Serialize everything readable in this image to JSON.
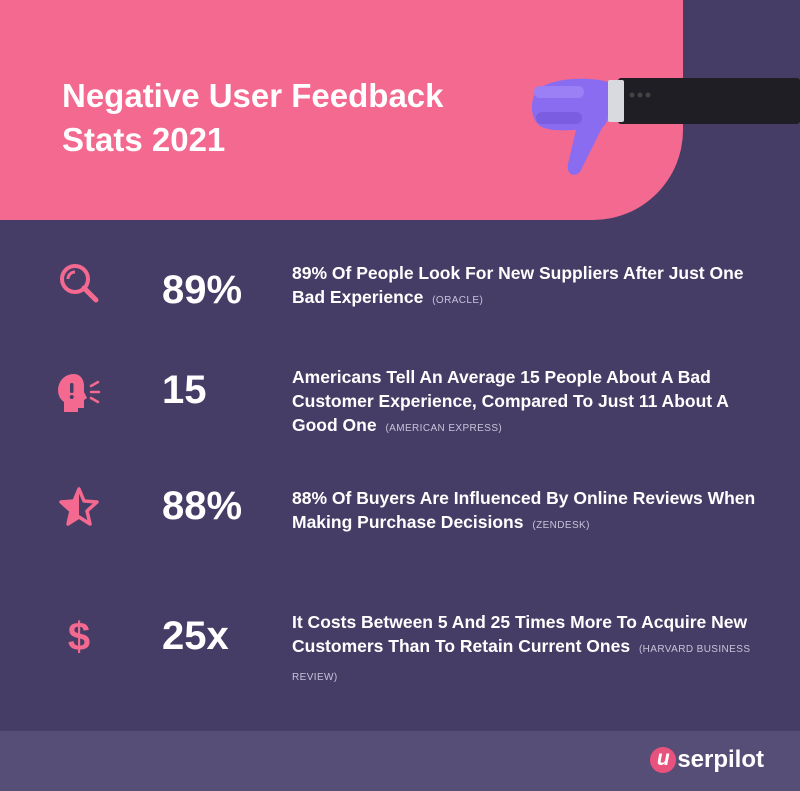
{
  "header": {
    "title": "Negative User Feedback Stats 2021"
  },
  "colors": {
    "accent": "#f4698f",
    "background": "#463d66",
    "footer": "#574e78",
    "icon": "#f4698f"
  },
  "stats": [
    {
      "icon": "magnifier-icon",
      "value": "89%",
      "text": "89% Of People Look For New Suppliers After Just One Bad Experience",
      "source": "(ORACLE)"
    },
    {
      "icon": "shouting-head-icon",
      "value": "15",
      "text": "Americans Tell An Average 15 People About A Bad Customer Experience, Compared To Just 11 About A Good One",
      "source": "(AMERICAN EXPRESS)"
    },
    {
      "icon": "star-icon",
      "value": "88%",
      "text": "88% Of Buyers Are Influenced By Online Reviews When Making Purchase Decisions",
      "source": "(ZENDESK)"
    },
    {
      "icon": "dollar-icon",
      "value": "25x",
      "text": "It Costs Between 5 And 25 Times More To Acquire New Customers Than To Retain Current Ones",
      "source": "(HARVARD BUSINESS REVIEW)"
    }
  ],
  "footer": {
    "logo_initial": "u",
    "logo_text": "serpilot"
  }
}
